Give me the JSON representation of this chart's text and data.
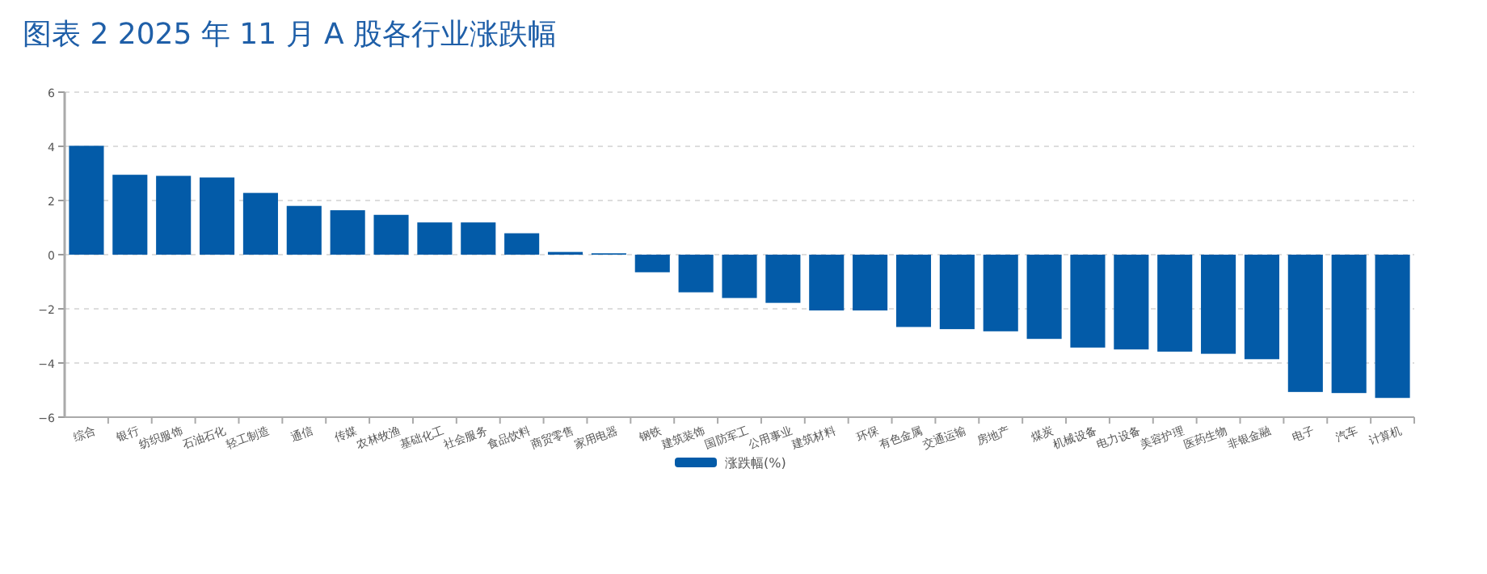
{
  "chart_data": {
    "type": "bar",
    "title": "图表 2 2025 年 11 月 A 股各行业涨跌幅",
    "categories": [
      "综合",
      "银行",
      "纺织服饰",
      "石油石化",
      "轻工制造",
      "通信",
      "传媒",
      "农林牧渔",
      "基础化工",
      "社会服务",
      "食品饮料",
      "商贸零售",
      "家用电器",
      "钢铁",
      "建筑装饰",
      "国防军工",
      "公用事业",
      "建筑材料",
      "环保",
      "有色金属",
      "交通运输",
      "房地产",
      "煤炭",
      "机械设备",
      "电力设备",
      "美容护理",
      "医药生物",
      "非银金融",
      "电子",
      "汽车",
      "计算机"
    ],
    "series": [
      {
        "name": "涨跌幅(%)",
        "color": "#035ba8",
        "values": [
          4.02,
          2.95,
          2.91,
          2.85,
          2.28,
          1.8,
          1.64,
          1.47,
          1.19,
          1.19,
          0.79,
          0.1,
          0.05,
          -0.65,
          -1.39,
          -1.6,
          -1.78,
          -2.06,
          -2.06,
          -2.67,
          -2.75,
          -2.83,
          -3.11,
          -3.43,
          -3.5,
          -3.58,
          -3.66,
          -3.86,
          -5.07,
          -5.11,
          -5.29
        ]
      }
    ],
    "ylim": [
      -6,
      6
    ],
    "yticks": [
      -6,
      -4,
      -2,
      0,
      2,
      4,
      6
    ],
    "grid": "y",
    "legend": "bottom"
  }
}
